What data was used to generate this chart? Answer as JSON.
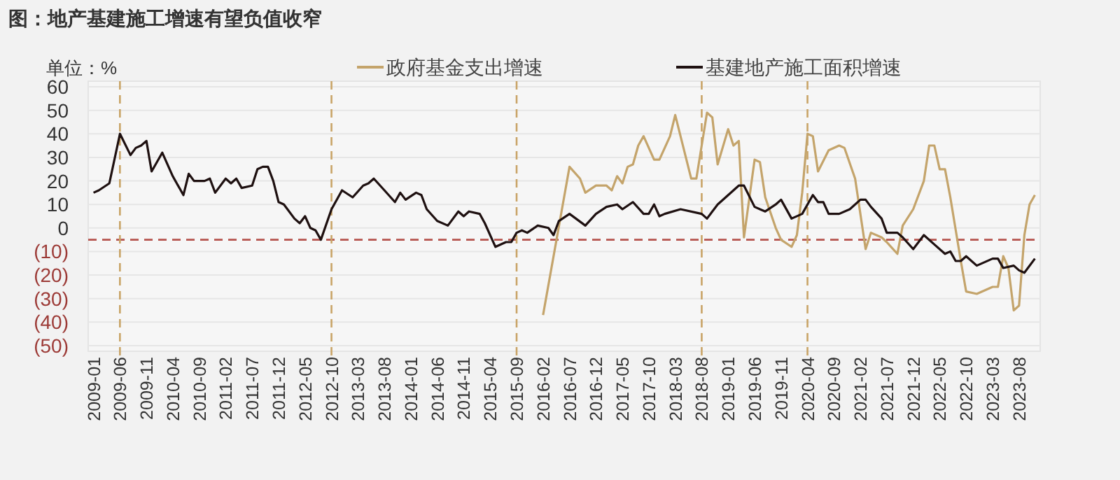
{
  "chart_data": {
    "type": "line",
    "title": "图：地产基建施工增速有望负值收窄",
    "ylabel": "单位：%",
    "legend": "top",
    "grid": "y",
    "xlim": [
      "2008-12",
      "2023-12"
    ],
    "xticks": [
      "2009-01",
      "2009-06",
      "2009-11",
      "2010-04",
      "2010-09",
      "2011-02",
      "2011-07",
      "2011-12",
      "2012-05",
      "2012-10",
      "2013-03",
      "2013-08",
      "2014-01",
      "2014-06",
      "2014-11",
      "2015-04",
      "2015-09",
      "2016-02",
      "2016-07",
      "2016-12",
      "2017-05",
      "2017-10",
      "2018-03",
      "2018-08",
      "2019-01",
      "2019-06",
      "2019-11",
      "2020-04",
      "2020-09",
      "2021-02",
      "2021-07",
      "2021-12",
      "2022-05",
      "2022-10",
      "2023-03",
      "2023-08"
    ],
    "ylim": [
      -50,
      60
    ],
    "yticks": [
      60,
      50,
      40,
      30,
      20,
      10,
      0,
      {
        "value": -10,
        "label": "(10)"
      },
      {
        "value": -20,
        "label": "(20)"
      },
      {
        "value": -30,
        "label": "(30)"
      },
      {
        "value": -40,
        "label": "(40)"
      },
      {
        "value": -50,
        "label": "(50)"
      }
    ],
    "ref_lines": [
      {
        "axis": "y",
        "value": -5,
        "color": "#b5524c",
        "line_style": "dashed"
      },
      {
        "axis": "x",
        "value": "2009-06",
        "color": "#c9a467",
        "line_style": "dashed"
      },
      {
        "axis": "x",
        "value": "2012-10",
        "color": "#c9a467",
        "line_style": "dashed"
      },
      {
        "axis": "x",
        "value": "2015-09",
        "color": "#c9a467",
        "line_style": "dashed"
      },
      {
        "axis": "x",
        "value": "2018-08",
        "color": "#c9a467",
        "line_style": "dashed"
      },
      {
        "axis": "x",
        "value": "2020-04",
        "color": "#c9a467",
        "line_style": "dashed"
      }
    ],
    "series": [
      {
        "name": "政府基金支出增速",
        "color": "#c4a46b",
        "x": [
          "2016-02",
          "2016-07",
          "2016-09",
          "2016-10",
          "2016-12",
          "2017-02",
          "2017-03",
          "2017-04",
          "2017-05",
          "2017-06",
          "2017-07",
          "2017-08",
          "2017-09",
          "2017-11",
          "2017-12",
          "2018-02",
          "2018-03",
          "2018-06",
          "2018-07",
          "2018-09",
          "2018-10",
          "2018-11",
          "2019-01",
          "2019-02",
          "2019-03",
          "2019-04",
          "2019-06",
          "2019-07",
          "2019-08",
          "2019-10",
          "2019-11",
          "2020-01",
          "2020-02",
          "2020-03",
          "2020-04",
          "2020-05",
          "2020-06",
          "2020-08",
          "2020-10",
          "2020-11",
          "2021-01",
          "2021-03",
          "2021-04",
          "2021-06",
          "2021-07",
          "2021-09",
          "2021-10",
          "2021-12",
          "2022-02",
          "2022-03",
          "2022-04",
          "2022-05",
          "2022-06",
          "2022-07",
          "2022-09",
          "2022-10",
          "2022-12",
          "2023-03",
          "2023-04",
          "2023-05",
          "2023-06",
          "2023-07",
          "2023-08",
          "2023-09",
          "2023-10",
          "2023-11"
        ],
        "values": [
          -37,
          26,
          21,
          15,
          18,
          18,
          16,
          22,
          19,
          26,
          27,
          35,
          39,
          29,
          29,
          39,
          48,
          21,
          21,
          49,
          47,
          27,
          42,
          35,
          37,
          -4,
          29,
          28,
          13,
          0,
          -5,
          -8,
          -3,
          15,
          40,
          39,
          24,
          33,
          35,
          34,
          21,
          -9,
          -2,
          -4,
          -6,
          -11,
          1,
          8,
          20,
          35,
          35,
          25,
          25,
          13,
          -14,
          -27,
          -28,
          -25,
          -25,
          -12,
          -17,
          -35,
          -33,
          -3,
          10,
          14
        ]
      },
      {
        "name": "基建地产施工面积增速",
        "color": "#1e1010",
        "x": [
          "2009-01",
          "2009-02",
          "2009-04",
          "2009-06",
          "2009-08",
          "2009-09",
          "2009-10",
          "2009-11",
          "2009-12",
          "2010-02",
          "2010-04",
          "2010-06",
          "2010-07",
          "2010-08",
          "2010-10",
          "2010-11",
          "2010-12",
          "2011-02",
          "2011-03",
          "2011-04",
          "2011-05",
          "2011-07",
          "2011-08",
          "2011-09",
          "2011-10",
          "2011-11",
          "2011-12",
          "2012-01",
          "2012-03",
          "2012-04",
          "2012-05",
          "2012-06",
          "2012-07",
          "2012-08",
          "2012-10",
          "2012-12",
          "2013-02",
          "2013-04",
          "2013-05",
          "2013-06",
          "2013-08",
          "2013-10",
          "2013-11",
          "2013-12",
          "2014-02",
          "2014-03",
          "2014-04",
          "2014-06",
          "2014-08",
          "2014-10",
          "2014-11",
          "2014-12",
          "2015-02",
          "2015-03",
          "2015-05",
          "2015-07",
          "2015-08",
          "2015-09",
          "2015-10",
          "2015-11",
          "2016-01",
          "2016-03",
          "2016-04",
          "2016-05",
          "2016-07",
          "2016-10",
          "2016-12",
          "2017-02",
          "2017-04",
          "2017-05",
          "2017-07",
          "2017-09",
          "2017-10",
          "2017-11",
          "2017-12",
          "2018-01",
          "2018-04",
          "2018-08",
          "2018-09",
          "2018-11",
          "2019-03",
          "2019-04",
          "2019-06",
          "2019-07",
          "2019-08",
          "2019-10",
          "2019-11",
          "2020-01",
          "2020-03",
          "2020-05",
          "2020-06",
          "2020-07",
          "2020-08",
          "2020-10",
          "2020-12",
          "2021-02",
          "2021-03",
          "2021-04",
          "2021-06",
          "2021-07",
          "2021-09",
          "2021-10",
          "2021-12",
          "2022-02",
          "2022-04",
          "2022-06",
          "2022-07",
          "2022-08",
          "2022-09",
          "2022-10",
          "2022-12",
          "2023-03",
          "2023-04",
          "2023-05",
          "2023-07",
          "2023-08",
          "2023-09",
          "2023-11"
        ],
        "values": [
          15,
          16,
          19,
          40,
          31,
          34,
          35,
          37,
          24,
          32,
          22,
          14,
          23,
          20,
          20,
          21,
          15,
          21,
          19,
          21,
          17,
          18,
          25,
          26,
          26,
          20,
          11,
          10,
          4,
          2,
          5,
          0,
          -1,
          -5,
          8,
          16,
          13,
          18,
          19,
          21,
          16,
          11,
          15,
          12,
          15,
          14,
          8,
          3,
          1,
          7,
          5,
          7,
          6,
          2,
          -8,
          -6,
          -6,
          -2,
          -1,
          -2,
          1,
          0,
          -3,
          3,
          6,
          1,
          6,
          9,
          10,
          8,
          11,
          6,
          6,
          10,
          5,
          6,
          8,
          6,
          4,
          10,
          18,
          18,
          9,
          8,
          7,
          10,
          12,
          4,
          6,
          14,
          11,
          11,
          6,
          6,
          8,
          12,
          12,
          9,
          4,
          -2,
          -2,
          -4,
          -9,
          -3,
          -7,
          -11,
          -10,
          -14,
          -14,
          -12,
          -16,
          -13,
          -13,
          -17,
          -16,
          -18,
          -19,
          -13
        ]
      }
    ]
  }
}
